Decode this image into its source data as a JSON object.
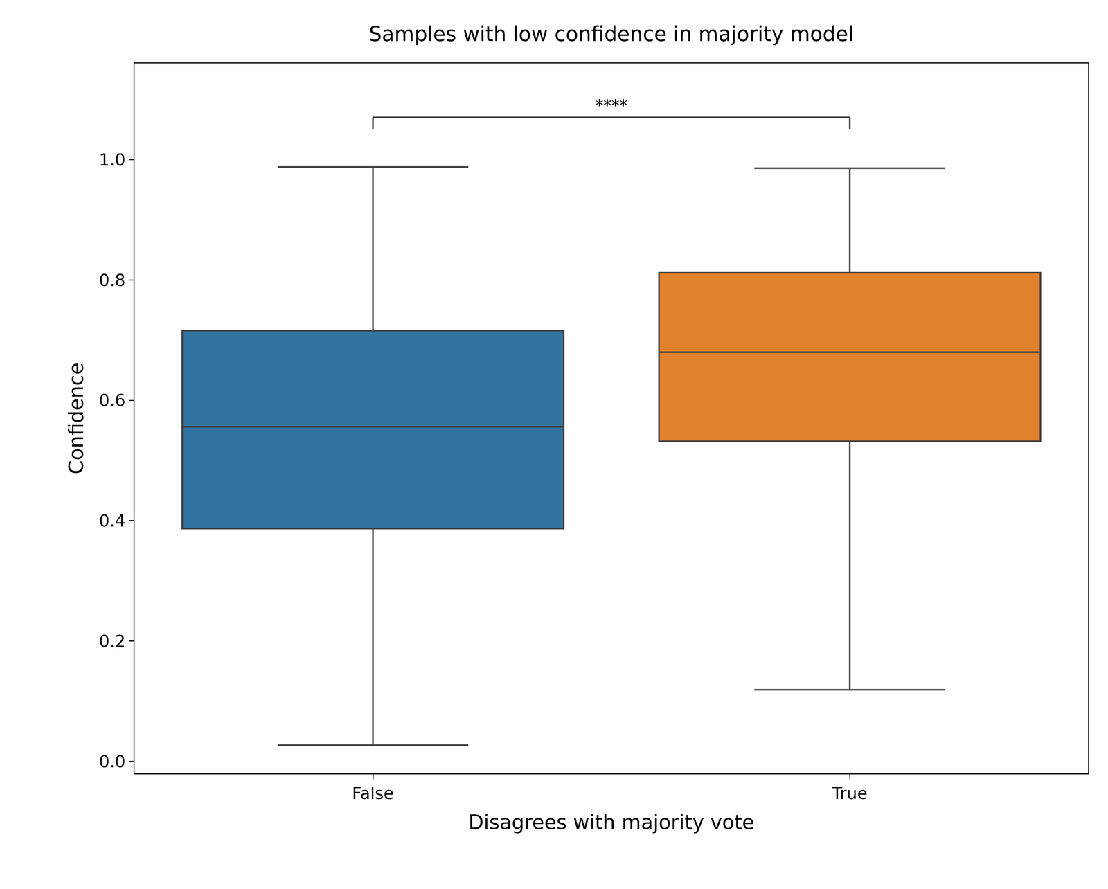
{
  "chart_data": {
    "type": "box",
    "title": "Samples with low confidence in majority model",
    "x_label": "Disagrees with majority vote",
    "y_label": "Confidence",
    "categories": [
      "False",
      "True"
    ],
    "boxes": [
      {
        "category": "False",
        "color": "#3274a1",
        "lower_whisker": 0.027,
        "q1": 0.387,
        "median": 0.556,
        "q3": 0.716,
        "upper_whisker": 0.988
      },
      {
        "category": "True",
        "color": "#e1812c",
        "lower_whisker": 0.119,
        "q1": 0.532,
        "median": 0.68,
        "q3": 0.812,
        "upper_whisker": 0.986
      }
    ],
    "ylim": [
      -0.02,
      1.16
    ],
    "yticks": [
      {
        "value": 0,
        "label": "0.0"
      },
      0.2,
      0.4,
      0.6,
      0.8,
      {
        "value": 1,
        "label": "1.0"
      }
    ],
    "grid": false,
    "annotations": [
      {
        "text": "****",
        "from": "False",
        "to": "True"
      }
    ]
  }
}
